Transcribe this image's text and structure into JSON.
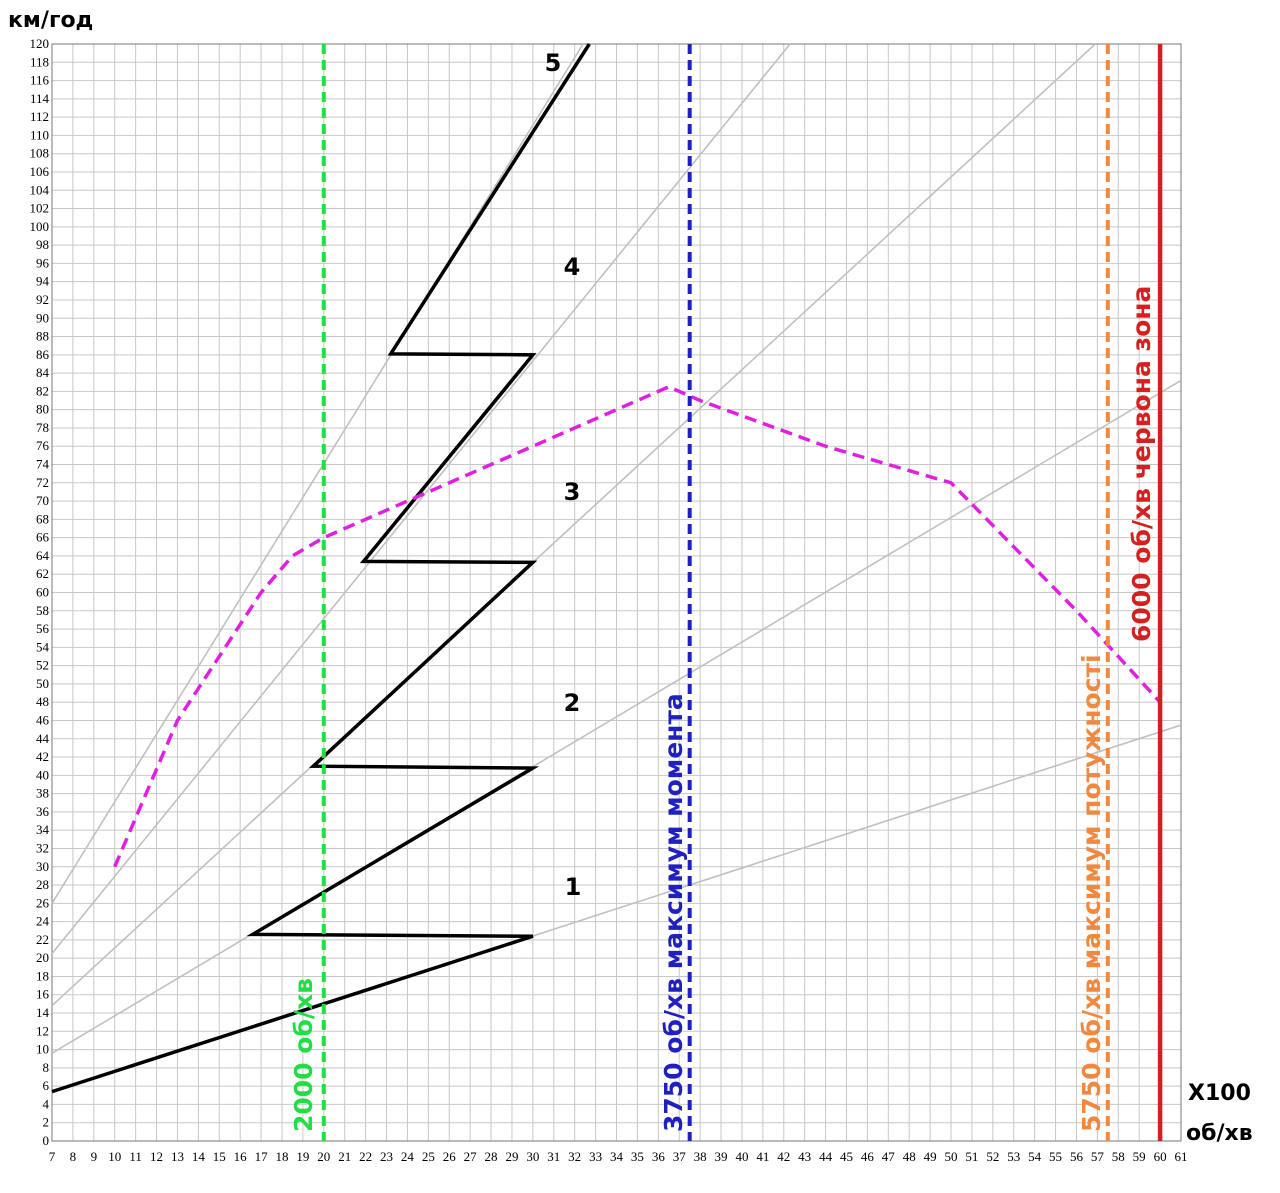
{
  "chart_data": {
    "type": "line",
    "y_label": "км/год",
    "x_label_top": "X100",
    "x_label_bottom": "об/хв",
    "xlim": [
      7,
      61
    ],
    "ylim": [
      0,
      120
    ],
    "xticks": [
      7,
      8,
      9,
      10,
      11,
      12,
      13,
      14,
      15,
      16,
      17,
      18,
      19,
      20,
      21,
      22,
      23,
      24,
      25,
      26,
      27,
      28,
      29,
      30,
      31,
      32,
      33,
      34,
      35,
      36,
      37,
      38,
      39,
      40,
      41,
      42,
      43,
      44,
      45,
      46,
      47,
      48,
      49,
      50,
      51,
      52,
      53,
      54,
      55,
      56,
      57,
      58,
      59,
      60,
      61
    ],
    "yticks": [
      0,
      2,
      4,
      6,
      8,
      10,
      12,
      14,
      16,
      18,
      20,
      22,
      24,
      26,
      28,
      30,
      32,
      34,
      36,
      38,
      40,
      42,
      44,
      46,
      48,
      50,
      52,
      54,
      56,
      58,
      60,
      62,
      64,
      66,
      68,
      70,
      72,
      74,
      76,
      78,
      80,
      82,
      84,
      86,
      88,
      90,
      92,
      94,
      96,
      98,
      100,
      102,
      104,
      106,
      108,
      110,
      112,
      114,
      116,
      118,
      120
    ],
    "grid": true,
    "series": [
      {
        "color": "#c0c0c0",
        "style": "solid",
        "x": [
          7,
          61
        ],
        "values": [
          5.3,
          45.5
        ]
      },
      {
        "color": "#c0c0c0",
        "style": "solid",
        "x": [
          7,
          61
        ],
        "values": [
          9.6,
          83.2
        ]
      },
      {
        "color": "#c0c0c0",
        "style": "solid",
        "x": [
          7,
          56.9
        ],
        "values": [
          14.8,
          120
        ]
      },
      {
        "color": "#c0c0c0",
        "style": "solid",
        "x": [
          7,
          42.3
        ],
        "values": [
          20.5,
          120
        ]
      },
      {
        "color": "#c0c0c0",
        "style": "solid",
        "x": [
          7,
          32.4
        ],
        "values": [
          26,
          120
        ]
      },
      {
        "color": "#000000",
        "style": "solid",
        "x": [
          7,
          30,
          16.6,
          30,
          19.5,
          30,
          21.9,
          30,
          23.2,
          32.7
        ],
        "values": [
          5.4,
          22.4,
          22.6,
          40.8,
          41,
          63.3,
          63.4,
          86,
          86.1,
          120
        ]
      },
      {
        "color": "#e020e0",
        "style": "dashed",
        "x": [
          10,
          11.5,
          13,
          15,
          17,
          18.5,
          20,
          24,
          30,
          36.5,
          38,
          44,
          50,
          56,
          60
        ],
        "values": [
          30,
          38,
          46,
          53,
          60,
          64,
          66,
          70,
          76,
          82.5,
          81,
          76,
          72,
          58,
          48
        ]
      }
    ],
    "gear_labels": [
      "1",
      "2",
      "3",
      "4",
      "5"
    ],
    "reference_lines": [
      {
        "x": 20,
        "label": "2000 об/хв",
        "color": "#22dd44",
        "style": "dashed"
      },
      {
        "x": 37.5,
        "label": "3750 об/хв  максимум момента",
        "color": "#2020c0",
        "style": "dashed"
      },
      {
        "x": 57.5,
        "label": "5750 об/хв  максимум потужності",
        "color": "#f08840",
        "style": "dashed"
      },
      {
        "x": 60,
        "label": "6000 об/хв червона зона",
        "color": "#d42020",
        "style": "solid"
      }
    ]
  }
}
